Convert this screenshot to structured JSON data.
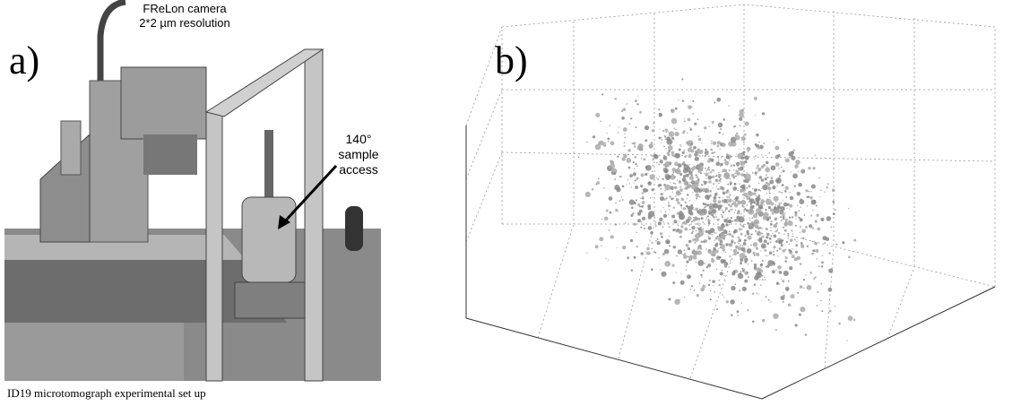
{
  "panel_a": {
    "label": "a)",
    "camera_title": "FReLon camera",
    "camera_resolution": "2*2 µm resolution",
    "annotation_lines": [
      "140°",
      "sample",
      "access"
    ],
    "caption": "ID19 microtomograph experimental set up"
  },
  "panel_b": {
    "label": "b)"
  }
}
